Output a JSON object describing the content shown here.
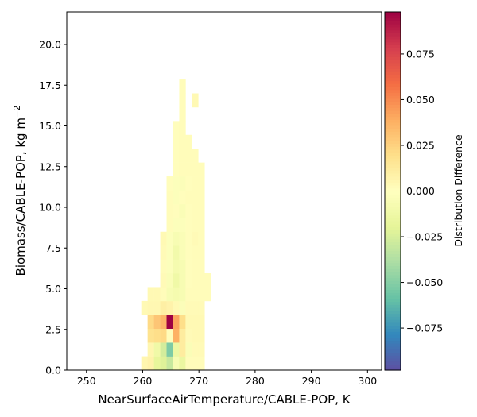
{
  "chart_data": {
    "type": "heatmap",
    "xlabel": "NearSurfaceAirTemperature/CABLE-POP,  K",
    "ylabel_main": "Biomass/CABLE-POP,  kg m",
    "ylabel_sup": "−2",
    "colorbar_label": "Distribution Difference",
    "xlim": [
      246.5,
      302.5
    ],
    "ylim": [
      0,
      22
    ],
    "x_ticks": [
      250,
      260,
      270,
      280,
      290,
      300
    ],
    "x_tick_labels": [
      "250",
      "260",
      "270",
      "280",
      "290",
      "300"
    ],
    "y_ticks": [
      0,
      2.5,
      5,
      7.5,
      10,
      12.5,
      15,
      17.5,
      20
    ],
    "y_tick_labels": [
      "0.0",
      "2.5",
      "5.0",
      "7.5",
      "10.0",
      "12.5",
      "15.0",
      "17.5",
      "20.0"
    ],
    "colorbar_range": [
      -0.098,
      0.098
    ],
    "colorbar_ticks": [
      -0.075,
      -0.05,
      -0.025,
      0,
      0.025,
      0.05,
      0.075
    ],
    "colorbar_tick_labels": [
      "−0.075",
      "−0.050",
      "−0.025",
      "0.000",
      "0.025",
      "0.050",
      "0.075"
    ],
    "colormap": "Spectral_r",
    "bin_width_x": 1.125,
    "bin_height_y": 0.85,
    "cells": [
      {
        "xi": 12,
        "yi": 0,
        "v": 0.006
      },
      {
        "xi": 13,
        "yi": 0,
        "v": 0.008
      },
      {
        "xi": 14,
        "yi": 0,
        "v": -0.018
      },
      {
        "xi": 15,
        "yi": 0,
        "v": -0.022
      },
      {
        "xi": 16,
        "yi": 0,
        "v": -0.03
      },
      {
        "xi": 17,
        "yi": 0,
        "v": -0.006
      },
      {
        "xi": 18,
        "yi": 0,
        "v": -0.015
      },
      {
        "xi": 19,
        "yi": 0,
        "v": 0.002
      },
      {
        "xi": 20,
        "yi": 0,
        "v": 0.002
      },
      {
        "xi": 21,
        "yi": 0,
        "v": 0.002
      },
      {
        "xi": 13,
        "yi": 1,
        "v": 0.006
      },
      {
        "xi": 14,
        "yi": 1,
        "v": -0.012
      },
      {
        "xi": 15,
        "yi": 1,
        "v": -0.026
      },
      {
        "xi": 16,
        "yi": 1,
        "v": -0.052
      },
      {
        "xi": 17,
        "yi": 1,
        "v": -0.014
      },
      {
        "xi": 18,
        "yi": 1,
        "v": 0.012
      },
      {
        "xi": 19,
        "yi": 1,
        "v": -0.004
      },
      {
        "xi": 20,
        "yi": 1,
        "v": 0.003
      },
      {
        "xi": 21,
        "yi": 1,
        "v": 0.003
      },
      {
        "xi": 13,
        "yi": 2,
        "v": 0.018
      },
      {
        "xi": 14,
        "yi": 2,
        "v": 0.02
      },
      {
        "xi": 15,
        "yi": 2,
        "v": 0.022
      },
      {
        "xi": 16,
        "yi": 2,
        "v": 0.002
      },
      {
        "xi": 17,
        "yi": 2,
        "v": 0.038
      },
      {
        "xi": 18,
        "yi": 2,
        "v": 0.012
      },
      {
        "xi": 19,
        "yi": 2,
        "v": 0.003
      },
      {
        "xi": 20,
        "yi": 2,
        "v": 0.004
      },
      {
        "xi": 21,
        "yi": 2,
        "v": 0.004
      },
      {
        "xi": 13,
        "yi": 3,
        "v": 0.022
      },
      {
        "xi": 14,
        "yi": 3,
        "v": 0.03
      },
      {
        "xi": 15,
        "yi": 3,
        "v": 0.036
      },
      {
        "xi": 16,
        "yi": 3,
        "v": 0.098
      },
      {
        "xi": 17,
        "yi": 3,
        "v": 0.042
      },
      {
        "xi": 18,
        "yi": 3,
        "v": 0.02
      },
      {
        "xi": 19,
        "yi": 3,
        "v": 0.004
      },
      {
        "xi": 20,
        "yi": 3,
        "v": 0.004
      },
      {
        "xi": 21,
        "yi": 3,
        "v": 0.004
      },
      {
        "xi": 12,
        "yi": 4,
        "v": 0.004
      },
      {
        "xi": 13,
        "yi": 4,
        "v": 0.005
      },
      {
        "xi": 14,
        "yi": 4,
        "v": 0.005
      },
      {
        "xi": 15,
        "yi": 4,
        "v": 0.01
      },
      {
        "xi": 16,
        "yi": 4,
        "v": 0.008
      },
      {
        "xi": 17,
        "yi": 4,
        "v": 0.004
      },
      {
        "xi": 18,
        "yi": 4,
        "v": -0.003
      },
      {
        "xi": 19,
        "yi": 4,
        "v": 0.003
      },
      {
        "xi": 20,
        "yi": 4,
        "v": 0.003
      },
      {
        "xi": 21,
        "yi": 4,
        "v": 0.003
      },
      {
        "xi": 13,
        "yi": 5,
        "v": 0.004
      },
      {
        "xi": 14,
        "yi": 5,
        "v": 0.004
      },
      {
        "xi": 15,
        "yi": 5,
        "v": 0.002
      },
      {
        "xi": 16,
        "yi": 5,
        "v": -0.006
      },
      {
        "xi": 17,
        "yi": 5,
        "v": -0.008
      },
      {
        "xi": 18,
        "yi": 5,
        "v": -0.006
      },
      {
        "xi": 19,
        "yi": 5,
        "v": 0.002
      },
      {
        "xi": 20,
        "yi": 5,
        "v": 0.002
      },
      {
        "xi": 21,
        "yi": 5,
        "v": 0.002
      },
      {
        "xi": 22,
        "yi": 5,
        "v": 0.002
      },
      {
        "xi": 15,
        "yi": 6,
        "v": 0.003
      },
      {
        "xi": 16,
        "yi": 6,
        "v": -0.004
      },
      {
        "xi": 17,
        "yi": 6,
        "v": -0.012
      },
      {
        "xi": 18,
        "yi": 6,
        "v": -0.006
      },
      {
        "xi": 19,
        "yi": 6,
        "v": 0.001
      },
      {
        "xi": 20,
        "yi": 6,
        "v": 0.002
      },
      {
        "xi": 21,
        "yi": 6,
        "v": 0.002
      },
      {
        "xi": 22,
        "yi": 6,
        "v": 0.002
      },
      {
        "xi": 15,
        "yi": 7,
        "v": 0.002
      },
      {
        "xi": 16,
        "yi": 7,
        "v": -0.002
      },
      {
        "xi": 17,
        "yi": 7,
        "v": -0.008
      },
      {
        "xi": 18,
        "yi": 7,
        "v": -0.006
      },
      {
        "xi": 19,
        "yi": 7,
        "v": 0.001
      },
      {
        "xi": 20,
        "yi": 7,
        "v": 0.002
      },
      {
        "xi": 21,
        "yi": 7,
        "v": 0.002
      },
      {
        "xi": 15,
        "yi": 8,
        "v": 0.003
      },
      {
        "xi": 16,
        "yi": 8,
        "v": -0.002
      },
      {
        "xi": 17,
        "yi": 8,
        "v": -0.01
      },
      {
        "xi": 18,
        "yi": 8,
        "v": -0.004
      },
      {
        "xi": 19,
        "yi": 8,
        "v": 0.001
      },
      {
        "xi": 20,
        "yi": 8,
        "v": 0.002
      },
      {
        "xi": 21,
        "yi": 8,
        "v": 0.002
      },
      {
        "xi": 15,
        "yi": 9,
        "v": 0.004
      },
      {
        "xi": 16,
        "yi": 9,
        "v": -0.002
      },
      {
        "xi": 17,
        "yi": 9,
        "v": -0.006
      },
      {
        "xi": 18,
        "yi": 9,
        "v": -0.004
      },
      {
        "xi": 19,
        "yi": 9,
        "v": 0.001
      },
      {
        "xi": 20,
        "yi": 9,
        "v": 0.003
      },
      {
        "xi": 21,
        "yi": 9,
        "v": 0.002
      },
      {
        "xi": 16,
        "yi": 10,
        "v": 0.002
      },
      {
        "xi": 17,
        "yi": 10,
        "v": -0.002
      },
      {
        "xi": 18,
        "yi": 10,
        "v": -0.002
      },
      {
        "xi": 19,
        "yi": 10,
        "v": 0.001
      },
      {
        "xi": 20,
        "yi": 10,
        "v": 0.002
      },
      {
        "xi": 21,
        "yi": 10,
        "v": 0.002
      },
      {
        "xi": 16,
        "yi": 11,
        "v": 0.002
      },
      {
        "xi": 17,
        "yi": 11,
        "v": 0.001
      },
      {
        "xi": 18,
        "yi": 11,
        "v": -0.004
      },
      {
        "xi": 19,
        "yi": 11,
        "v": 0.001
      },
      {
        "xi": 20,
        "yi": 11,
        "v": 0.002
      },
      {
        "xi": 21,
        "yi": 11,
        "v": 0.002
      },
      {
        "xi": 16,
        "yi": 12,
        "v": 0.002
      },
      {
        "xi": 17,
        "yi": 12,
        "v": -0.002
      },
      {
        "xi": 18,
        "yi": 12,
        "v": 0.001
      },
      {
        "xi": 19,
        "yi": 12,
        "v": 0.002
      },
      {
        "xi": 20,
        "yi": 12,
        "v": 0.002
      },
      {
        "xi": 21,
        "yi": 12,
        "v": 0.002
      },
      {
        "xi": 16,
        "yi": 13,
        "v": 0.001
      },
      {
        "xi": 17,
        "yi": 13,
        "v": -0.002
      },
      {
        "xi": 18,
        "yi": 13,
        "v": -0.003
      },
      {
        "xi": 19,
        "yi": 13,
        "v": 0.001
      },
      {
        "xi": 20,
        "yi": 13,
        "v": 0.002
      },
      {
        "xi": 21,
        "yi": 13,
        "v": 0.002
      },
      {
        "xi": 17,
        "yi": 14,
        "v": 0.001
      },
      {
        "xi": 18,
        "yi": 14,
        "v": 0.002
      },
      {
        "xi": 19,
        "yi": 14,
        "v": 0.002
      },
      {
        "xi": 20,
        "yi": 14,
        "v": 0.002
      },
      {
        "xi": 21,
        "yi": 14,
        "v": 0.002
      },
      {
        "xi": 17,
        "yi": 15,
        "v": 0.001
      },
      {
        "xi": 18,
        "yi": 15,
        "v": 0.002
      },
      {
        "xi": 19,
        "yi": 15,
        "v": 0.002
      },
      {
        "xi": 20,
        "yi": 15,
        "v": 0.002
      },
      {
        "xi": 17,
        "yi": 16,
        "v": 0.001
      },
      {
        "xi": 18,
        "yi": 16,
        "v": 0.002
      },
      {
        "xi": 19,
        "yi": 16,
        "v": 0.002
      },
      {
        "xi": 17,
        "yi": 17,
        "v": 0.001
      },
      {
        "xi": 18,
        "yi": 17,
        "v": 0.002
      },
      {
        "xi": 18,
        "yi": 18,
        "v": 0.002
      },
      {
        "xi": 18,
        "yi": 19,
        "v": 0.002
      },
      {
        "xi": 20,
        "yi": 19,
        "v": 0.004
      },
      {
        "xi": 18,
        "yi": 20,
        "v": 0.002
      }
    ]
  }
}
